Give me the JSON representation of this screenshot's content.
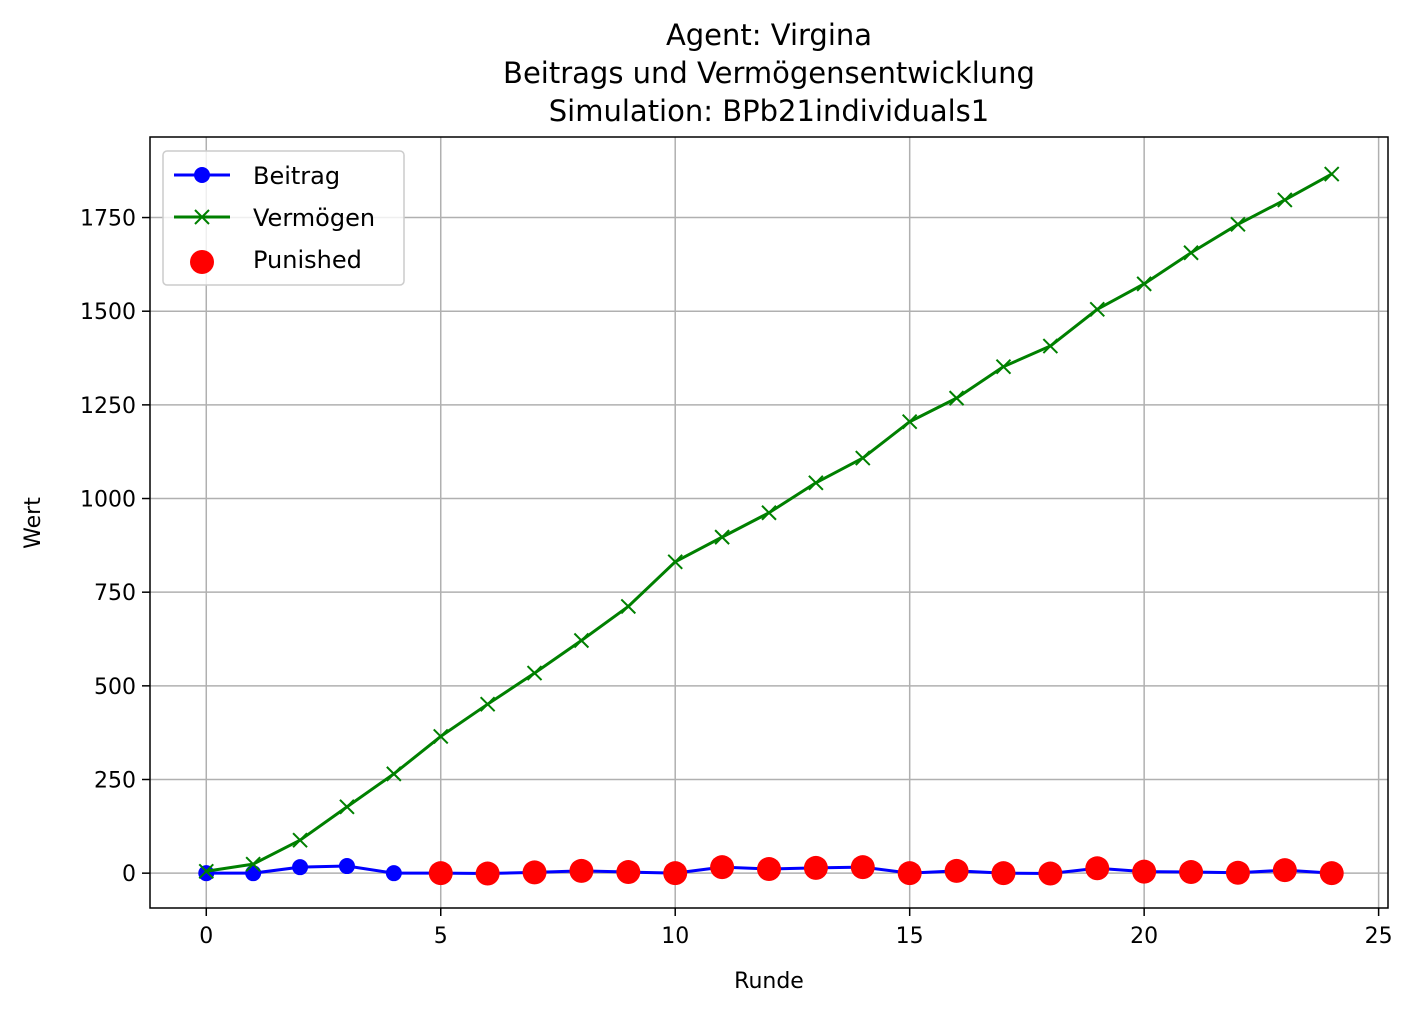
{
  "chart_data": {
    "type": "line",
    "title": [
      "Agent: Virgina",
      "Beitrags und Vermögensentwicklung",
      "Simulation: BPb21individuals1"
    ],
    "xlabel": "Runde",
    "ylabel": "Wert",
    "xlim": [
      -1.2,
      25.2
    ],
    "ylim": [
      -93,
      1965
    ],
    "xticks": [
      0,
      5,
      10,
      15,
      20,
      25
    ],
    "yticks": [
      0,
      250,
      500,
      750,
      1000,
      1250,
      1500,
      1750
    ],
    "grid": true,
    "legend_position": "upper-left",
    "x": [
      0,
      1,
      2,
      3,
      4,
      5,
      6,
      7,
      8,
      9,
      10,
      11,
      12,
      13,
      14,
      15,
      16,
      17,
      18,
      19,
      20,
      21,
      22,
      23,
      24
    ],
    "series": [
      {
        "name": "Beitrag",
        "color": "#0000ff",
        "marker": "circle",
        "values": [
          0,
          0,
          16,
          19,
          0,
          0,
          -1,
          2,
          6,
          3,
          0,
          16,
          11,
          14,
          16,
          0,
          6,
          0,
          -1,
          13,
          4,
          3,
          1,
          8,
          0
        ]
      },
      {
        "name": "Vermögen",
        "color": "#008000",
        "marker": "x",
        "values": [
          5,
          24,
          88,
          177,
          265,
          365,
          451,
          534,
          621,
          712,
          831,
          897,
          962,
          1042,
          1108,
          1205,
          1268,
          1352,
          1407,
          1505,
          1573,
          1656,
          1732,
          1797,
          1866
        ]
      }
    ],
    "punished": {
      "name": "Punished",
      "color": "#ff0000",
      "x": [
        5,
        6,
        7,
        8,
        9,
        10,
        11,
        12,
        13,
        14,
        15,
        16,
        17,
        18,
        19,
        20,
        21,
        22,
        23,
        24
      ],
      "values": [
        0,
        -1,
        2,
        6,
        3,
        0,
        16,
        11,
        14,
        16,
        0,
        6,
        0,
        -1,
        13,
        4,
        3,
        1,
        8,
        0
      ]
    }
  }
}
